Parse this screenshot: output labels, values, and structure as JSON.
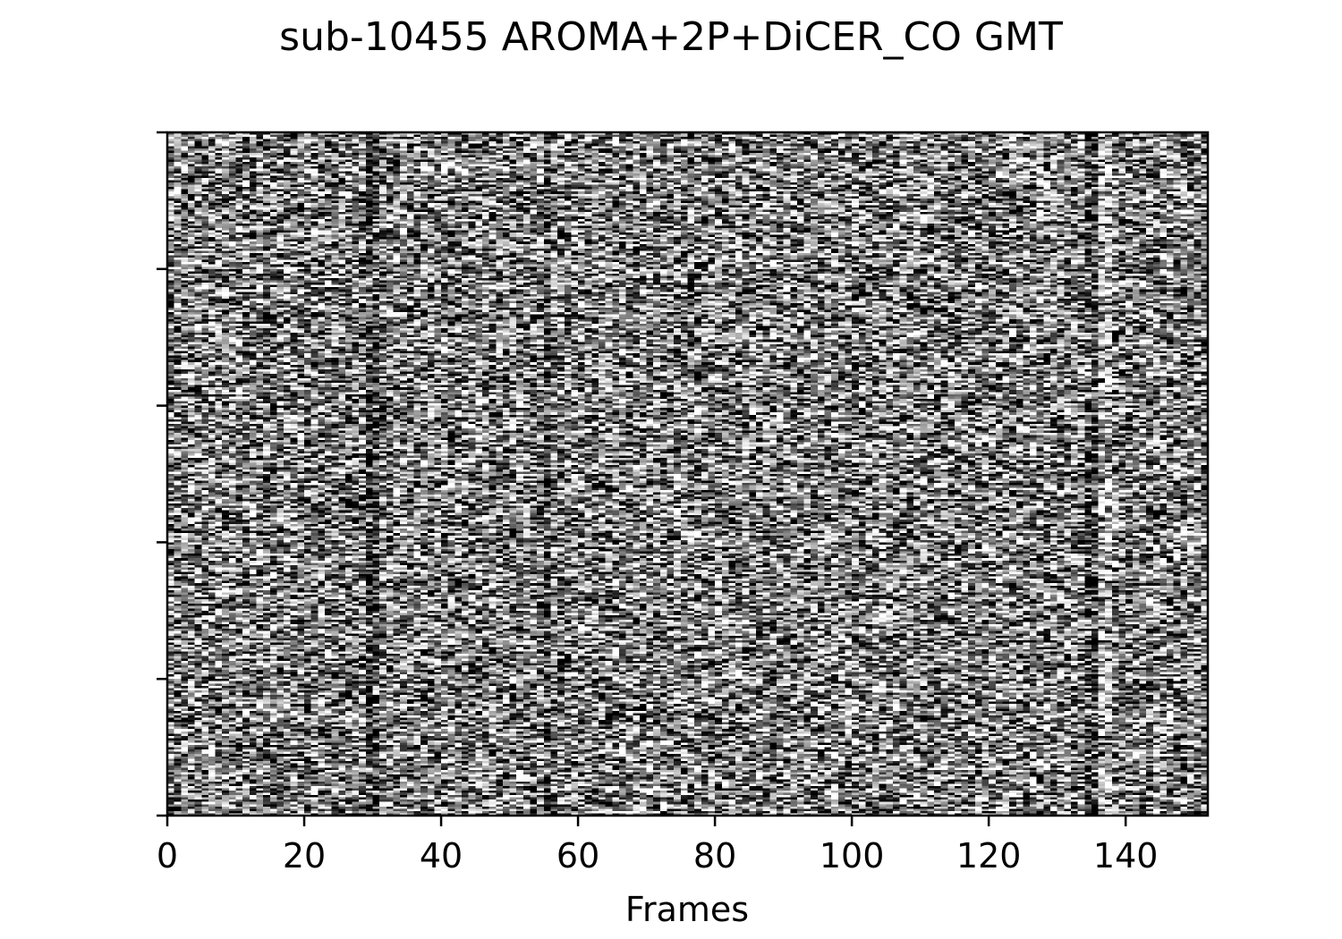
{
  "chart_data": {
    "type": "heatmap",
    "title": "sub-10455 AROMA+2P+DiCER_CO GMT",
    "xlabel": "Frames",
    "ylabel": "",
    "xlim": [
      0,
      152
    ],
    "x_ticks": [
      0,
      20,
      40,
      60,
      80,
      100,
      120,
      140
    ],
    "y_ticks_count": 6,
    "colormap": "gray",
    "grid": false,
    "legend": "none",
    "frames": 152,
    "description_values": {
      "dark_columns_frames": [
        29,
        30,
        55,
        134,
        135
      ],
      "bright_column_frames": [
        136,
        137
      ]
    }
  }
}
